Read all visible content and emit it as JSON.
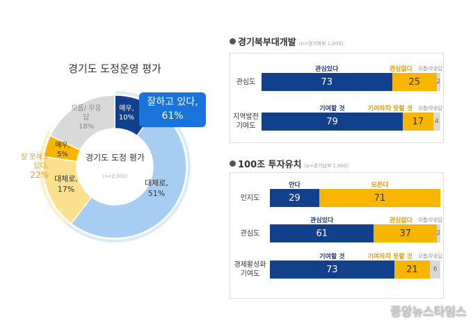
{
  "colors": {
    "navy": "#13408c",
    "lightblue": "#a8cdf2",
    "gold": "#f8b500",
    "lightyellow": "#fbe08e",
    "gray": "#d9d9d9",
    "callout": "#1a73d9"
  },
  "chart_data": [
    {
      "type": "pie",
      "title": "경기도 도정운영 평가",
      "center_label": "경기도 도정 평가",
      "n": "(n=2,000)",
      "slices": [
        {
          "label": "매우,",
          "value": 10,
          "text": "10%",
          "color": "#13408c"
        },
        {
          "label": "대체로,",
          "value": 51,
          "text": "51%",
          "color": "#a8cdf2"
        },
        {
          "label": "대체로,",
          "value": 17,
          "text": "17%",
          "color": "#fbe08e"
        },
        {
          "label": "매우,",
          "value": 5,
          "text": "5%",
          "color": "#f8b500"
        },
        {
          "label": "모름/ 무응답",
          "value": 18,
          "text": "18%",
          "color": "#d9d9d9"
        }
      ],
      "groups": [
        {
          "label": "잘하고 있다,",
          "text": "61%"
        },
        {
          "label": "잘 못하고 있다,",
          "text": "22%"
        }
      ]
    },
    {
      "type": "bar",
      "stacked": true,
      "orientation": "horizontal",
      "title": "경기북부대개발",
      "n": "(n=경기북부 1,000)",
      "rows": [
        {
          "label": "관심도",
          "cats": [
            "관심있다",
            "관심없다",
            "모름/무응답"
          ],
          "values": [
            73,
            25,
            2
          ]
        },
        {
          "label": "지역발전 기여도",
          "cats": [
            "기여할 것",
            "기여하지 못할 것",
            "모름/무응답"
          ],
          "values": [
            79,
            17,
            4
          ]
        }
      ]
    },
    {
      "type": "bar",
      "stacked": true,
      "orientation": "horizontal",
      "title": "100조 투자유치",
      "n": "(n=경기남부 1,000)",
      "rows": [
        {
          "label": "인지도",
          "cats": [
            "안다",
            "모른다"
          ],
          "values": [
            29,
            71
          ]
        },
        {
          "label": "관심도",
          "cats": [
            "관심있다",
            "관심없다",
            "모름/무응답"
          ],
          "values": [
            61,
            37,
            2
          ]
        },
        {
          "label": "경제활성화 기여도",
          "cats": [
            "기여할 것",
            "기여하지 못할 것",
            "모름/무응답"
          ],
          "values": [
            73,
            21,
            6
          ]
        }
      ]
    }
  ],
  "watermark": "중앙뉴스타임스"
}
